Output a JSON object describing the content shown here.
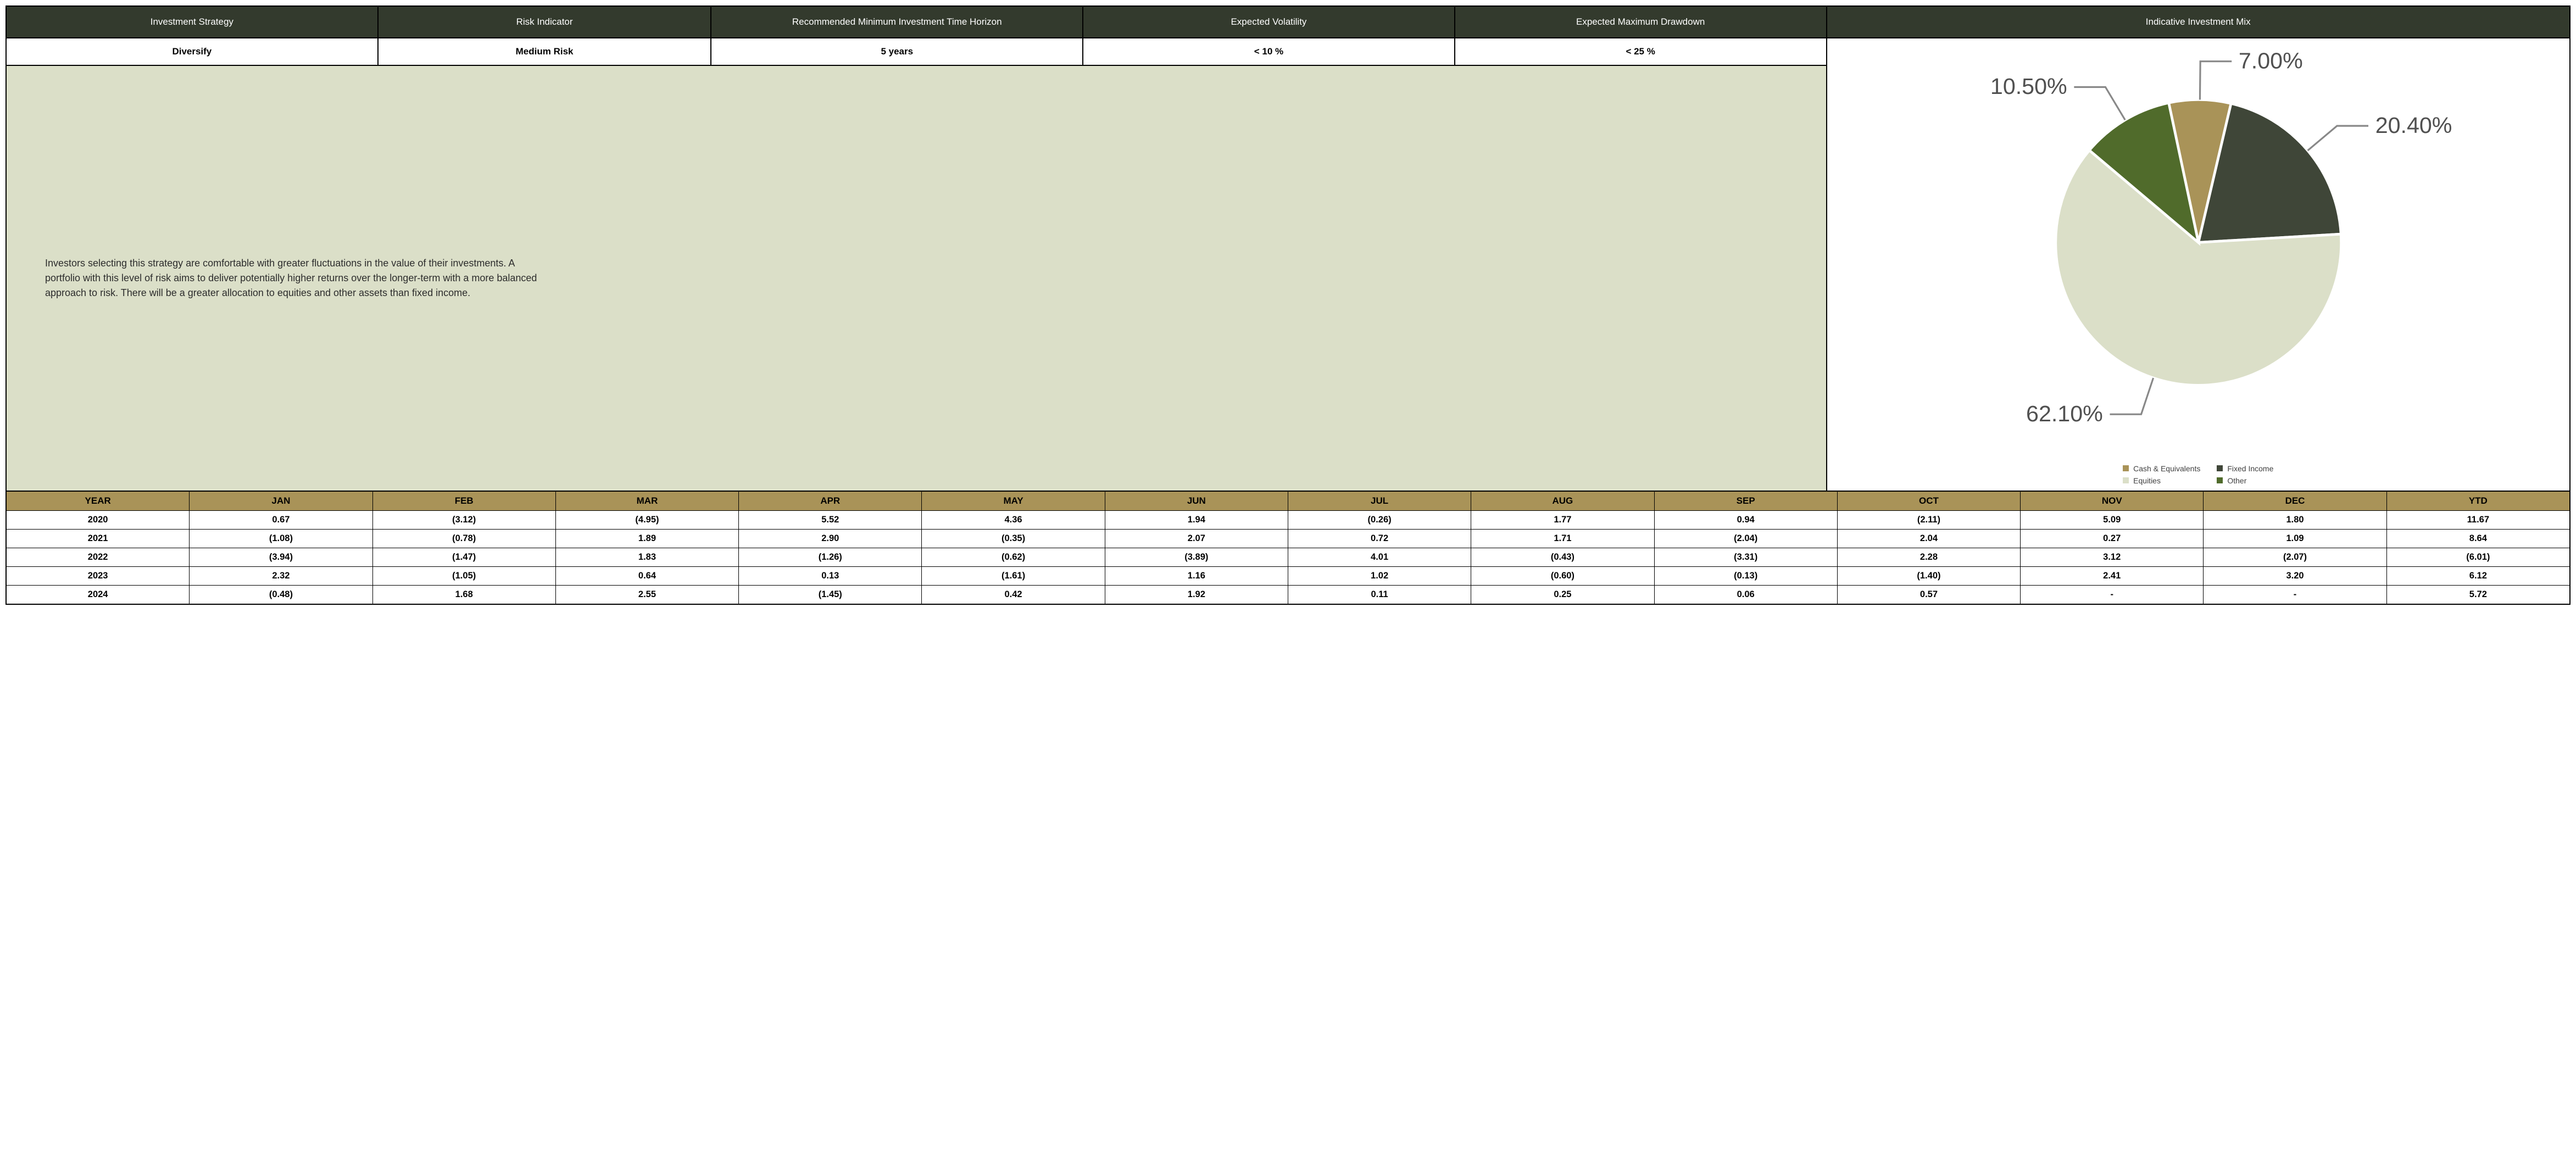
{
  "header": {
    "cols": [
      {
        "label": "Investment Strategy",
        "w": 14.5
      },
      {
        "label": "Risk Indicator",
        "w": 13
      },
      {
        "label": "Recommended Minimum Investment Time Horizon",
        "w": 14.5
      },
      {
        "label": "Expected Volatility",
        "w": 14.5
      },
      {
        "label": "Expected Maximum Drawdown",
        "w": 14.5
      },
      {
        "label": "Indicative Investment Mix",
        "w": 29
      }
    ],
    "values": [
      "Diversify",
      "Medium Risk",
      "5 years",
      "< 10 %",
      "< 25 %"
    ],
    "dark_bg": "#333a2d",
    "dark_fg": "#ffffff"
  },
  "description": {
    "text": "Investors selecting this strategy are comfortable with greater fluctuations in the value of their investments.  A portfolio with this level of risk aims to deliver potentially higher returns over the longer-term with a more balanced approach to risk.  There will be a greater allocation to equities and other assets than fixed income.",
    "bg": "#dbdfc8",
    "left_w": 71,
    "right_w": 29
  },
  "pie": {
    "type": "pie",
    "slices": [
      {
        "label": "Cash & Equivalents",
        "value": 7.0,
        "color": "#a99358",
        "display": "7.00%"
      },
      {
        "label": "Fixed Income",
        "value": 20.4,
        "color": "#3f4638",
        "display": "20.40%"
      },
      {
        "label": "Equities",
        "value": 62.1,
        "color": "#dbdfc8",
        "display": "62.10%"
      },
      {
        "label": "Other",
        "value": 10.5,
        "color": "#506b2b",
        "display": "10.50%"
      }
    ],
    "start_angle_deg": -12,
    "label_fontsize": 13,
    "legend_fontsize": 14
  },
  "perf": {
    "header_bg": "#a99358",
    "columns": [
      "YEAR",
      "JAN",
      "FEB",
      "MAR",
      "APR",
      "MAY",
      "JUN",
      "JUL",
      "AUG",
      "SEP",
      "OCT",
      "NOV",
      "DEC",
      "YTD"
    ],
    "rows": [
      [
        "2020",
        "0.67",
        "(3.12)",
        "(4.95)",
        "5.52",
        "4.36",
        "1.94",
        "(0.26)",
        "1.77",
        "0.94",
        "(2.11)",
        "5.09",
        "1.80",
        "11.67"
      ],
      [
        "2021",
        "(1.08)",
        "(0.78)",
        "1.89",
        "2.90",
        "(0.35)",
        "2.07",
        "0.72",
        "1.71",
        "(2.04)",
        "2.04",
        "0.27",
        "1.09",
        "8.64"
      ],
      [
        "2022",
        "(3.94)",
        "(1.47)",
        "1.83",
        "(1.26)",
        "(0.62)",
        "(3.89)",
        "4.01",
        "(0.43)",
        "(3.31)",
        "2.28",
        "3.12",
        "(2.07)",
        "(6.01)"
      ],
      [
        "2023",
        "2.32",
        "(1.05)",
        "0.64",
        "0.13",
        "(1.61)",
        "1.16",
        "1.02",
        "(0.60)",
        "(0.13)",
        "(1.40)",
        "2.41",
        "3.20",
        "6.12"
      ],
      [
        "2024",
        "(0.48)",
        "1.68",
        "2.55",
        "(1.45)",
        "0.42",
        "1.92",
        "0.11",
        "0.25",
        "0.06",
        "0.57",
        "-",
        "-",
        "5.72"
      ]
    ]
  }
}
